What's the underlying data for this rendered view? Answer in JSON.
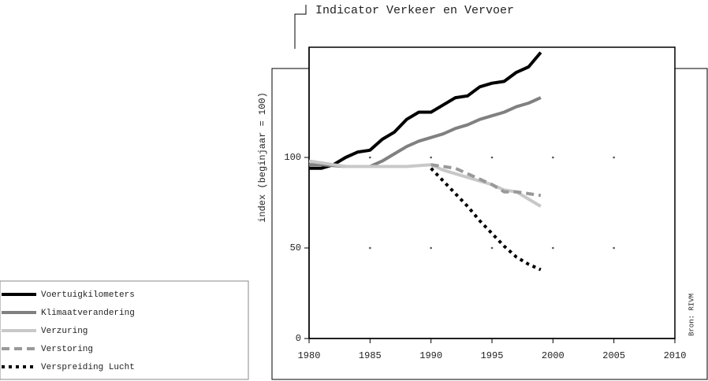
{
  "chart_data": {
    "type": "line",
    "title": "Indicator Verkeer en Vervoer",
    "y_label": "index (beginjaar = 100)",
    "source": "Bron: RIVM",
    "x": [
      1980,
      1981,
      1982,
      1983,
      1984,
      1985,
      1986,
      1987,
      1988,
      1989,
      1990,
      1991,
      1992,
      1993,
      1994,
      1995,
      1996,
      1997,
      1998,
      1999
    ],
    "series": [
      {
        "name": "Voertuigkilometers",
        "color": "#000000",
        "dash": "solid",
        "values": [
          94,
          94,
          96,
          100,
          103,
          104,
          110,
          114,
          121,
          125,
          125,
          129,
          133,
          134,
          139,
          141,
          142,
          147,
          150,
          158
        ]
      },
      {
        "name": "Klimaatverandering",
        "color": "#808080",
        "dash": "solid",
        "values": [
          96,
          96,
          95.5,
          95,
          95,
          95,
          98,
          102,
          106,
          109,
          111,
          113,
          116,
          118,
          121,
          123,
          125,
          128,
          130,
          133
        ]
      },
      {
        "name": "Verzuring",
        "color": "#c8c8c8",
        "dash": "solid",
        "values": [
          98,
          97,
          96,
          95,
          95,
          95,
          95,
          95,
          95,
          95.5,
          96,
          93,
          91,
          89,
          87,
          85,
          82,
          81,
          77,
          73
        ]
      },
      {
        "name": "Verstoring",
        "color": "#999999",
        "dash": "dashed",
        "values": [
          null,
          null,
          null,
          null,
          null,
          null,
          null,
          null,
          null,
          null,
          96,
          95,
          94,
          91,
          88,
          85,
          81,
          81,
          80,
          79
        ]
      },
      {
        "name": "Verspreiding Lucht",
        "color": "#000000",
        "dash": "dotted",
        "values": [
          null,
          null,
          null,
          null,
          null,
          null,
          null,
          null,
          null,
          null,
          94,
          87,
          80,
          73,
          65,
          58,
          51,
          45,
          41,
          38
        ]
      }
    ],
    "xlim": [
      1980,
      2010
    ],
    "xticks": [
      1980,
      1985,
      1990,
      1995,
      2000,
      2005,
      2010
    ],
    "ylim": [
      0,
      160
    ],
    "yticks": [
      0,
      50,
      100
    ],
    "grid": true
  }
}
